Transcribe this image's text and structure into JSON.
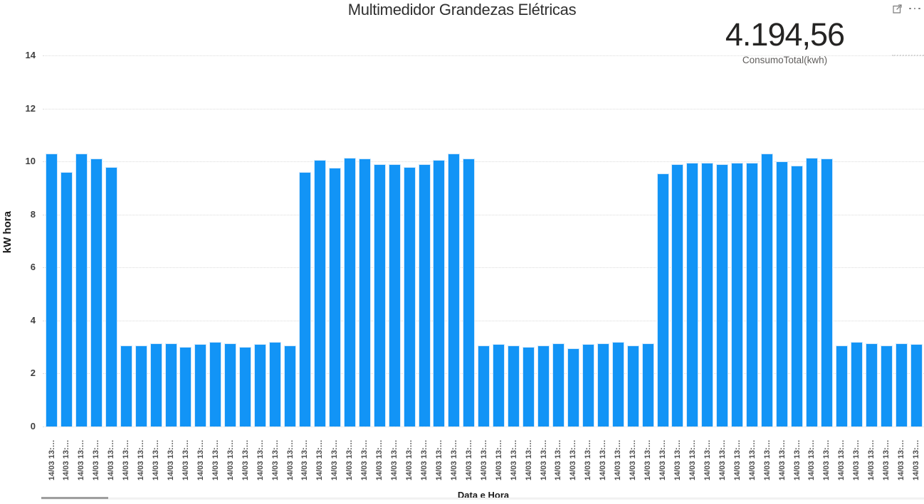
{
  "kpi_card": {
    "value": "4.194,56",
    "label": "ConsumoTotal(kwh)"
  },
  "toolbar": {
    "icons": [
      {
        "name": "focus-mode-icon"
      },
      {
        "name": "more-options-icon"
      }
    ]
  },
  "colors": {
    "bar": "#1294F6",
    "bar_edge": "#CFE7FB",
    "grid": "#DBDBDB",
    "axis_text": "#404040",
    "title_text": "#2F2F2F",
    "kpi_text": "#252423",
    "kpi_label_text": "#605E5C"
  },
  "chart_data": {
    "type": "bar",
    "title": "Multimedidor Grandezas Elétricas",
    "xlabel": "Data e Hora",
    "ylabel": "kW hora",
    "ylim": [
      0,
      14
    ],
    "yticks": [
      0,
      2,
      4,
      6,
      8,
      10,
      12,
      14
    ],
    "grid": "dotted horizontal",
    "legend": "none",
    "bar_color": "#1294F6",
    "categories": [
      "14/03 13:…",
      "14/03 13:…",
      "14/03 13:…",
      "14/03 13:…",
      "14/03 13:…",
      "14/03 13:…",
      "14/03 13:…",
      "14/03 13:…",
      "14/03 13:…",
      "14/03 13:…",
      "14/03 13:…",
      "14/03 13:…",
      "14/03 13:…",
      "14/03 13:…",
      "14/03 13:…",
      "14/03 13:…",
      "14/03 13:…",
      "14/03 13:…",
      "14/03 13:…",
      "14/03 13:…",
      "14/03 13:…",
      "14/03 13:…",
      "14/03 13:…",
      "14/03 13:…",
      "14/03 13:…",
      "14/03 13:…",
      "14/03 13:…",
      "14/03 13:…",
      "14/03 13:…",
      "14/03 13:…",
      "14/03 13:…",
      "14/03 13:…",
      "14/03 13:…",
      "14/03 13:…",
      "14/03 13:…",
      "14/03 13:…",
      "14/03 13:…",
      "14/03 13:…",
      "14/03 13:…",
      "14/03 13:…",
      "14/03 13:…",
      "14/03 13:…",
      "14/03 13:…",
      "14/03 13:…",
      "14/03 13:…",
      "14/03 13:…",
      "14/03 13:…",
      "14/03 13:…",
      "14/03 13:…",
      "14/03 13:…",
      "14/03 13:…",
      "14/03 13:…",
      "14/03 13:…",
      "14/03 13:…",
      "14/03 13:…",
      "14/03 13:…",
      "14/03 13:…",
      "14/03 13:…",
      "14/03 13:…"
    ],
    "values": [
      10.3,
      9.6,
      10.3,
      10.1,
      9.8,
      3.05,
      3.05,
      3.15,
      3.15,
      3.0,
      3.1,
      3.2,
      3.15,
      3.0,
      3.1,
      3.2,
      3.05,
      9.6,
      10.05,
      9.75,
      10.15,
      10.1,
      9.9,
      9.9,
      9.8,
      9.9,
      10.05,
      10.3,
      10.1,
      3.05,
      3.1,
      3.05,
      3.0,
      3.05,
      3.15,
      2.95,
      3.1,
      3.15,
      3.2,
      3.05,
      3.15,
      9.55,
      9.9,
      9.95,
      9.95,
      9.9,
      9.95,
      9.95,
      10.3,
      10.0,
      9.85,
      10.15,
      10.1,
      3.05,
      3.2,
      3.15,
      3.05,
      3.15,
      3.1
    ]
  }
}
